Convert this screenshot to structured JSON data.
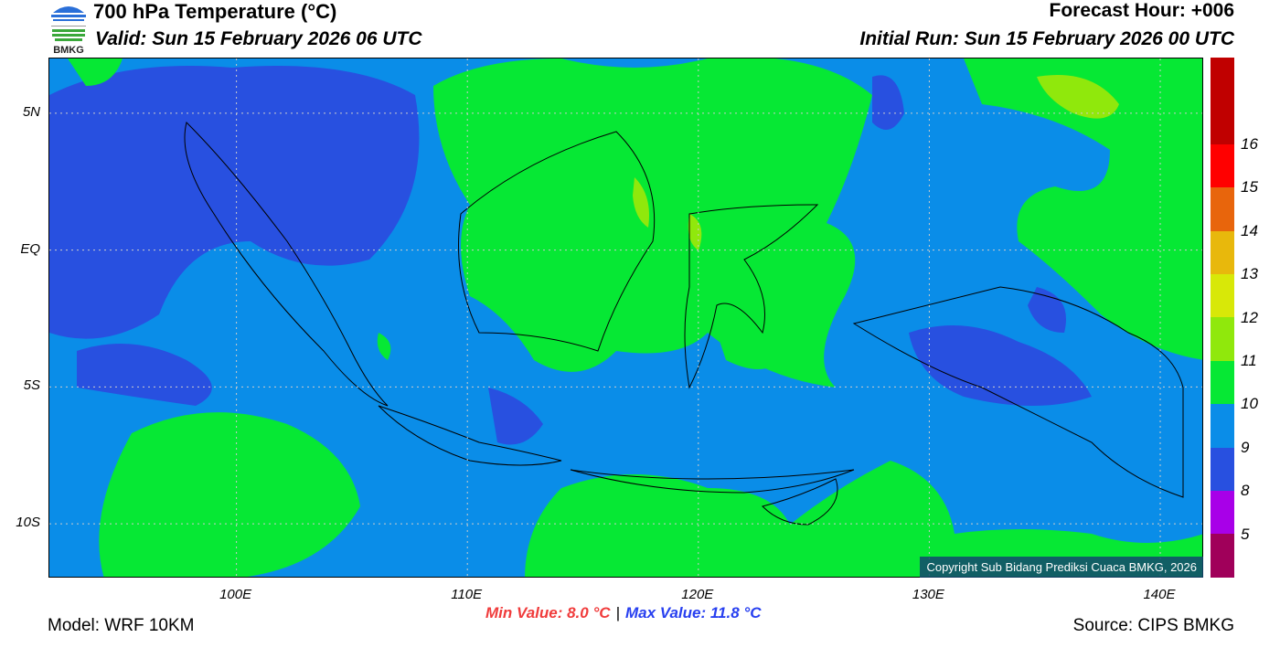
{
  "header": {
    "title": "700 hPa Temperature (°C)",
    "valid": "Valid: Sun 15 February 2026 06 UTC",
    "forecast_hour": "Forecast Hour: +006",
    "initial_run": "Initial Run: Sun 15 February 2026 00 UTC",
    "logo_text": "BMKG"
  },
  "map": {
    "lat_ticks": [
      {
        "label": "5N",
        "value": 5
      },
      {
        "label": "EQ",
        "value": 0
      },
      {
        "label": "5S",
        "value": -5
      },
      {
        "label": "10S",
        "value": -10
      }
    ],
    "lon_ticks": [
      {
        "label": "100E",
        "value": 100
      },
      {
        "label": "110E",
        "value": 110
      },
      {
        "label": "120E",
        "value": 120
      },
      {
        "label": "130E",
        "value": 130
      },
      {
        "label": "140E",
        "value": 140
      }
    ],
    "extent": {
      "lon": [
        91.9,
        141.9
      ],
      "lat": [
        -12,
        7
      ]
    },
    "copyright": "Copyright Sub Bidang Prediksi Cuaca BMKG, 2026"
  },
  "colorbar": {
    "colors": [
      "#c00000",
      "#ff0000",
      "#e8650c",
      "#e8b80c",
      "#d8e808",
      "#90e80c",
      "#06e834",
      "#0a8de8",
      "#2850e0",
      "#a800e8",
      "#a0005a"
    ],
    "labels": [
      "16",
      "15",
      "14",
      "13",
      "12",
      "11",
      "10",
      "9",
      "8",
      "5"
    ]
  },
  "footer": {
    "model": "Model: WRF 10KM",
    "min_value": "Min Value: 8.0 °C",
    "separator": "|",
    "max_value": "Max Value: 11.8 °C",
    "source": "Source: CIPS BMKG"
  }
}
